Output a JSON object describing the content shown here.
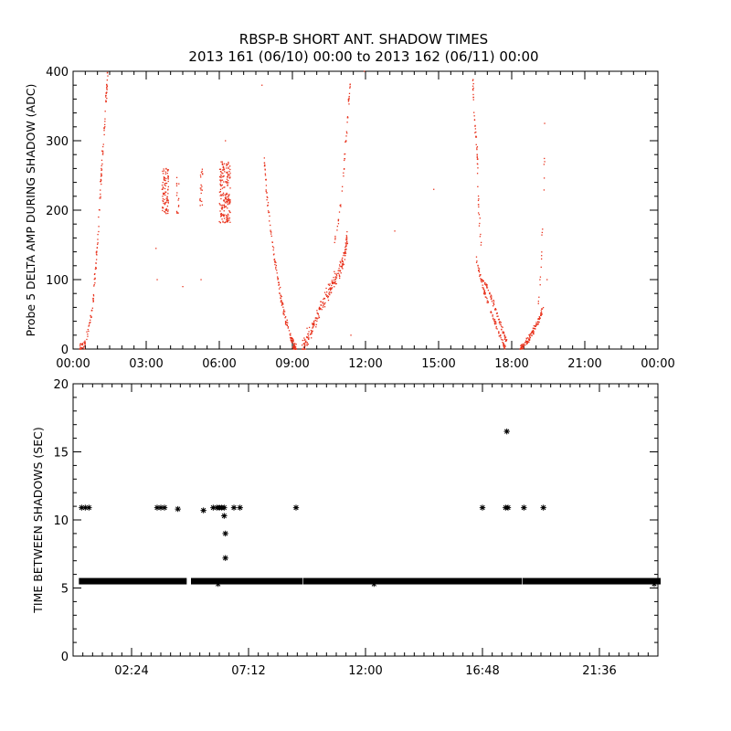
{
  "title_line1": "RBSP-B SHORT ANT. SHADOW TIMES",
  "title_line2": "2013 161 (06/10) 00:00 to 2013 162 (06/11) 00:00",
  "colors": {
    "top_series": "#e8301a",
    "bottom_series": "#000000",
    "axes": "#000000",
    "background": "#ffffff"
  },
  "chart_data": [
    {
      "type": "scatter",
      "ylabel": "Probe 5 DELTA AMP DURING SHADOW (ADC)",
      "xlabel": "",
      "xlim": [
        0,
        24
      ],
      "ylim": [
        0,
        400
      ],
      "x_ticks": [
        0,
        3,
        6,
        9,
        12,
        15,
        18,
        21,
        24
      ],
      "x_tick_labels": [
        "00:00",
        "03:00",
        "06:00",
        "09:00",
        "12:00",
        "15:00",
        "18:00",
        "21:00",
        "00:00"
      ],
      "y_ticks": [
        0,
        100,
        200,
        300,
        400
      ],
      "y_tick_labels": [
        "0",
        "100",
        "200",
        "300",
        "400"
      ],
      "x_units": "hours since 2013-06-10 00:00 UT",
      "grid": false,
      "marker": "dot",
      "clusters": [
        {
          "kind": "curve",
          "x": [
            0.28,
            0.55,
            0.8,
            1.0,
            1.15,
            1.32,
            1.42
          ],
          "y": [
            0,
            12,
            60,
            150,
            250,
            340,
            400
          ],
          "spread": 12,
          "count": 150
        },
        {
          "kind": "cloud",
          "x_range": [
            3.65,
            3.92
          ],
          "y_range": [
            195,
            262
          ],
          "count": 90
        },
        {
          "kind": "cloud",
          "x_range": [
            4.25,
            4.35
          ],
          "y_range": [
            195,
            250
          ],
          "count": 16
        },
        {
          "kind": "cloud",
          "x_range": [
            5.2,
            5.32
          ],
          "y_range": [
            205,
            260
          ],
          "count": 20
        },
        {
          "kind": "cloud",
          "x_range": [
            6.0,
            6.45
          ],
          "y_range": [
            182,
            270
          ],
          "count": 190
        },
        {
          "kind": "curve",
          "x": [
            7.85,
            7.95,
            8.1,
            8.3,
            8.5,
            8.7,
            8.9,
            9.05,
            9.15
          ],
          "y": [
            270,
            220,
            170,
            120,
            80,
            45,
            20,
            5,
            0
          ],
          "spread": 10,
          "count": 160
        },
        {
          "kind": "curve",
          "x": [
            9.4,
            9.7,
            10.0,
            10.3,
            10.6,
            10.9,
            11.1,
            11.25
          ],
          "y": [
            0,
            20,
            45,
            70,
            90,
            110,
            130,
            160
          ],
          "spread": 16,
          "count": 230
        },
        {
          "kind": "curve",
          "x": [
            10.7,
            10.85,
            10.95,
            11.05,
            11.15,
            11.22,
            11.32,
            11.38
          ],
          "y": [
            150,
            175,
            200,
            230,
            280,
            310,
            360,
            390
          ],
          "spread": 8,
          "count": 50
        },
        {
          "kind": "curve",
          "x": [
            16.4,
            16.45,
            16.55,
            16.6,
            16.65,
            16.75
          ],
          "y": [
            390,
            340,
            300,
            260,
            200,
            150
          ],
          "spread": 15,
          "count": 55
        },
        {
          "kind": "curve",
          "x": [
            16.55,
            16.8,
            17.1,
            17.3,
            17.5,
            17.75
          ],
          "y": [
            130,
            90,
            60,
            40,
            20,
            0
          ],
          "spread": 6,
          "count": 90
        },
        {
          "kind": "curve",
          "x": [
            16.8,
            17.0,
            17.2,
            17.4,
            17.6,
            17.8
          ],
          "y": [
            100,
            90,
            70,
            50,
            30,
            10
          ],
          "spread": 6,
          "count": 75
        },
        {
          "kind": "curve",
          "x": [
            18.35,
            18.55,
            18.75,
            18.95,
            19.15,
            19.3
          ],
          "y": [
            0,
            8,
            18,
            30,
            45,
            60
          ],
          "spread": 8,
          "count": 110
        },
        {
          "kind": "curve",
          "x": [
            19.1,
            19.2,
            19.3,
            19.35
          ],
          "y": [
            60,
            120,
            200,
            280
          ],
          "spread": 12,
          "count": 18
        },
        {
          "kind": "points",
          "x": [
            1.3,
            3.45,
            3.4,
            4.5,
            5.25,
            6.25,
            7.75,
            9.6,
            11.4,
            11.95,
            13.2,
            14.8,
            19.35,
            19.45
          ],
          "y": [
            405,
            100,
            145,
            90,
            100,
            300,
            380,
            30,
            20,
            400,
            170,
            230,
            325,
            100
          ]
        }
      ]
    },
    {
      "type": "scatter",
      "ylabel": "TIME BETWEEN SHADOWS (SEC)",
      "xlabel": "",
      "xlim": [
        0,
        24
      ],
      "ylim": [
        0,
        20
      ],
      "x_ticks": [
        2.4,
        7.2,
        12.0,
        16.8,
        21.6
      ],
      "x_tick_labels": [
        "02:24",
        "07:12",
        "12:00",
        "16:48",
        "21:36"
      ],
      "y_ticks": [
        0,
        5,
        10,
        15,
        20
      ],
      "y_tick_labels": [
        "0",
        "5",
        "10",
        "15",
        "20"
      ],
      "x_units": "hours since 2013-06-10 00:00 UT",
      "grid": false,
      "marker": "asterisk",
      "baseline": {
        "y": 5.5,
        "segments": [
          [
            0.35,
            4.55
          ],
          [
            4.95,
            9.3
          ],
          [
            9.55,
            18.3
          ],
          [
            18.55,
            24.0
          ]
        ]
      },
      "points": [
        {
          "x": 0.35,
          "y": 10.9
        },
        {
          "x": 0.5,
          "y": 10.9
        },
        {
          "x": 0.65,
          "y": 10.9
        },
        {
          "x": 3.45,
          "y": 10.9
        },
        {
          "x": 3.6,
          "y": 10.9
        },
        {
          "x": 3.75,
          "y": 10.9
        },
        {
          "x": 4.3,
          "y": 10.8
        },
        {
          "x": 5.35,
          "y": 10.7
        },
        {
          "x": 5.75,
          "y": 10.9
        },
        {
          "x": 5.9,
          "y": 10.9
        },
        {
          "x": 6.0,
          "y": 10.9
        },
        {
          "x": 6.1,
          "y": 10.9
        },
        {
          "x": 6.2,
          "y": 10.9
        },
        {
          "x": 6.2,
          "y": 10.3
        },
        {
          "x": 6.25,
          "y": 9.0
        },
        {
          "x": 6.25,
          "y": 7.2
        },
        {
          "x": 6.6,
          "y": 10.9
        },
        {
          "x": 6.85,
          "y": 10.9
        },
        {
          "x": 9.15,
          "y": 10.9
        },
        {
          "x": 16.8,
          "y": 10.9
        },
        {
          "x": 17.8,
          "y": 16.5
        },
        {
          "x": 17.75,
          "y": 10.9
        },
        {
          "x": 17.85,
          "y": 10.9
        },
        {
          "x": 18.5,
          "y": 10.9
        },
        {
          "x": 19.3,
          "y": 10.9
        },
        {
          "x": 5.95,
          "y": 5.3
        },
        {
          "x": 12.35,
          "y": 5.3
        },
        {
          "x": 23.85,
          "y": 5.3
        }
      ]
    }
  ]
}
